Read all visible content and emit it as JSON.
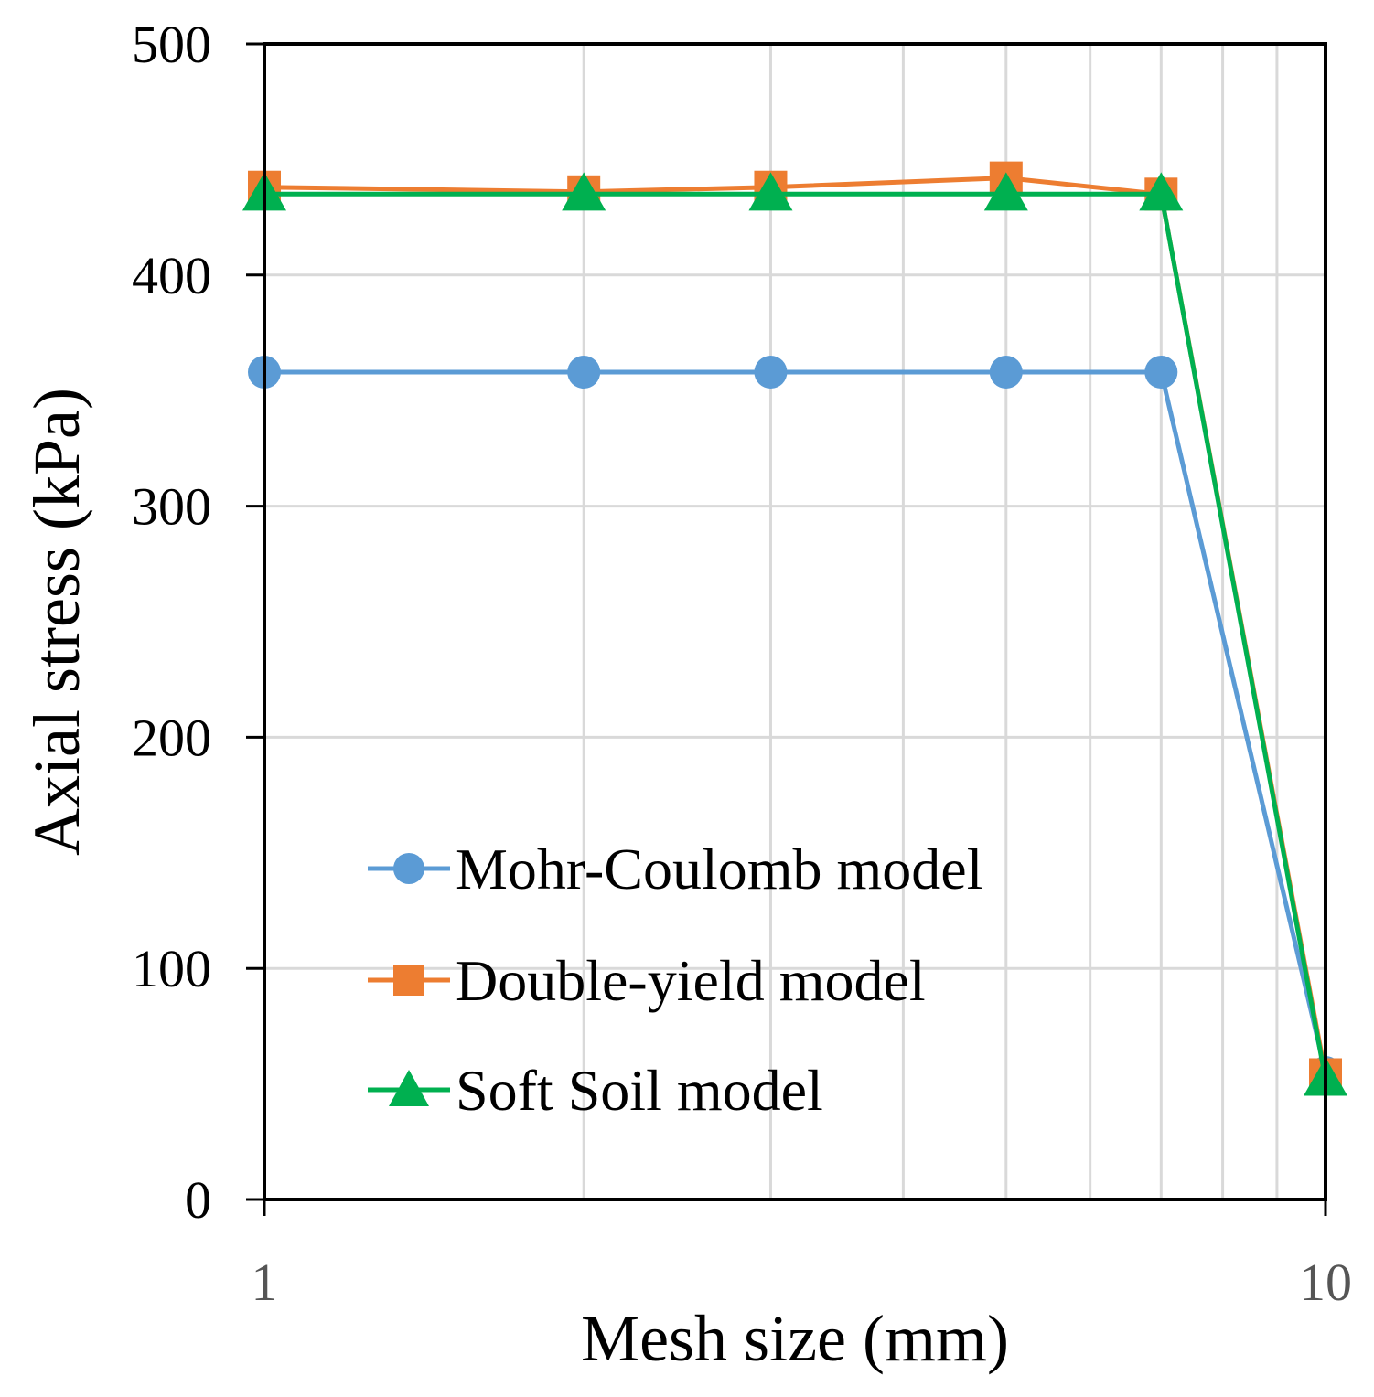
{
  "chart_data": {
    "type": "line",
    "title": "",
    "xlabel": "Mesh size (mm)",
    "ylabel": "Axial stress (kPa)",
    "xscale": "log",
    "xlim": [
      1,
      10
    ],
    "ylim": [
      0,
      500
    ],
    "x_tick_labels": [
      "1",
      "10"
    ],
    "y_tick_labels": [
      "0",
      "100",
      "200",
      "300",
      "400",
      "500"
    ],
    "grid": true,
    "legend_position": "center-left",
    "x": [
      1,
      2,
      3,
      5,
      7,
      10
    ],
    "series": [
      {
        "name": "Mohr-Coulomb model",
        "marker": "circle",
        "color": "#5b9bd5",
        "values": [
          358,
          358,
          358,
          358,
          358,
          55
        ]
      },
      {
        "name": "Double-yield model",
        "marker": "square",
        "color": "#ed7d31",
        "values": [
          438,
          436,
          438,
          442,
          435,
          54
        ]
      },
      {
        "name": "Soft Soil model",
        "marker": "triangle",
        "color": "#00b050",
        "values": [
          435,
          435,
          435,
          435,
          435,
          52
        ]
      }
    ]
  }
}
